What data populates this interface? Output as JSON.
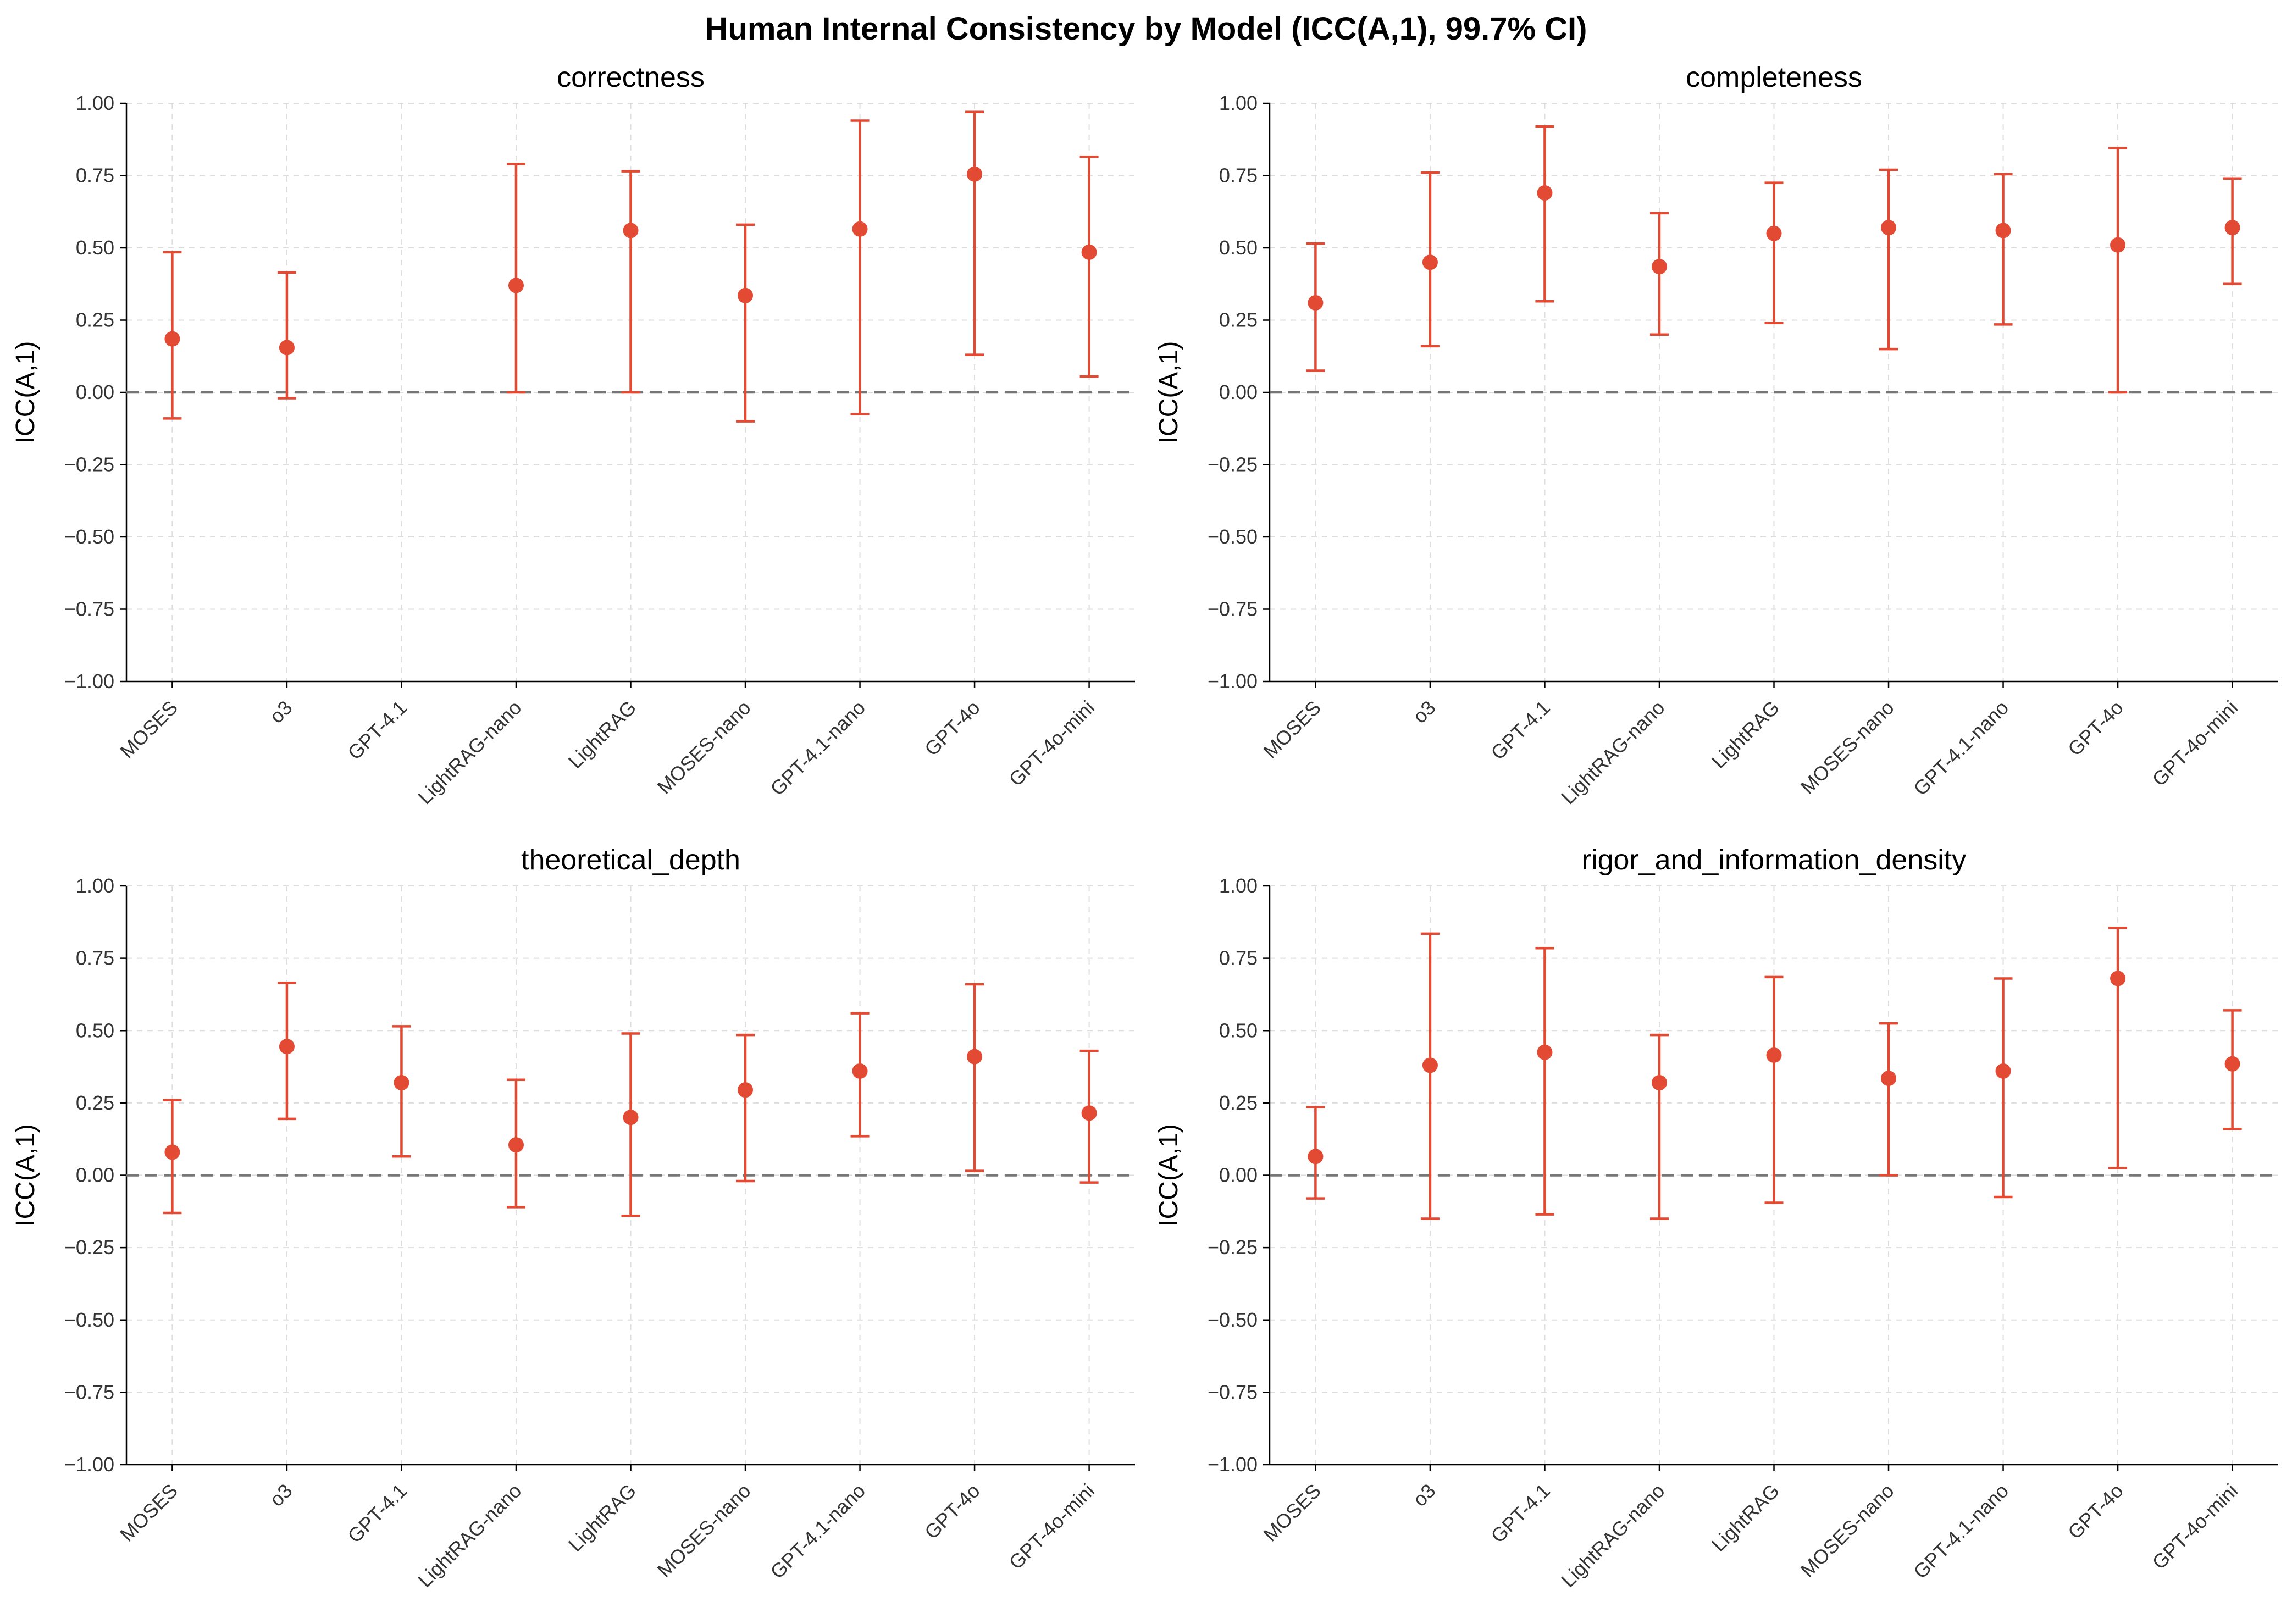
{
  "title": "Human Internal Consistency by Model (ICC(A,1), 99.7% CI)",
  "colors": {
    "marker": "#e34a33",
    "zero_line": "#777777",
    "grid": "#dddddd",
    "axis": "#000000"
  },
  "chart_data": [
    {
      "type": "scatter",
      "title": "correctness",
      "ylabel": "ICC(A,1)",
      "ylim": [
        -1,
        1
      ],
      "yticks": [
        "−1.00",
        "−0.75",
        "−0.50",
        "−0.25",
        "0.00",
        "0.25",
        "0.50",
        "0.75",
        "1.00"
      ],
      "categories": [
        "MOSES",
        "o3",
        "GPT-4.1",
        "LightRAG-nano",
        "LightRAG",
        "MOSES-nano",
        "GPT-4.1-nano",
        "GPT-4o",
        "GPT-4o-mini"
      ],
      "values": [
        0.185,
        0.155,
        null,
        0.37,
        0.56,
        0.335,
        0.565,
        0.755,
        0.485
      ],
      "ci_lower": [
        -0.09,
        -0.02,
        null,
        0.0,
        0.0,
        -0.1,
        -0.075,
        0.13,
        0.055
      ],
      "ci_upper": [
        0.485,
        0.415,
        null,
        0.79,
        0.765,
        0.58,
        0.94,
        0.97,
        0.815
      ],
      "reference_line": 0,
      "grid": true
    },
    {
      "type": "scatter",
      "title": "completeness",
      "ylabel": "ICC(A,1)",
      "ylim": [
        -1,
        1
      ],
      "yticks": [
        "−1.00",
        "−0.75",
        "−0.50",
        "−0.25",
        "0.00",
        "0.25",
        "0.50",
        "0.75",
        "1.00"
      ],
      "categories": [
        "MOSES",
        "o3",
        "GPT-4.1",
        "LightRAG-nano",
        "LightRAG",
        "MOSES-nano",
        "GPT-4.1-nano",
        "GPT-4o",
        "GPT-4o-mini"
      ],
      "values": [
        0.31,
        0.45,
        0.69,
        0.435,
        0.55,
        0.57,
        0.56,
        0.51,
        0.57
      ],
      "ci_lower": [
        0.075,
        0.16,
        0.315,
        0.2,
        0.24,
        0.15,
        0.235,
        0.0,
        0.375
      ],
      "ci_upper": [
        0.515,
        0.76,
        0.92,
        0.62,
        0.725,
        0.77,
        0.755,
        0.845,
        0.74
      ],
      "reference_line": 0,
      "grid": true
    },
    {
      "type": "scatter",
      "title": "theoretical_depth",
      "ylabel": "ICC(A,1)",
      "ylim": [
        -1,
        1
      ],
      "yticks": [
        "−1.00",
        "−0.75",
        "−0.50",
        "−0.25",
        "0.00",
        "0.25",
        "0.50",
        "0.75",
        "1.00"
      ],
      "categories": [
        "MOSES",
        "o3",
        "GPT-4.1",
        "LightRAG-nano",
        "LightRAG",
        "MOSES-nano",
        "GPT-4.1-nano",
        "GPT-4o",
        "GPT-4o-mini"
      ],
      "values": [
        0.08,
        0.445,
        0.32,
        0.105,
        0.2,
        0.295,
        0.36,
        0.41,
        0.215
      ],
      "ci_lower": [
        -0.13,
        0.195,
        0.065,
        -0.11,
        -0.14,
        -0.02,
        0.135,
        0.015,
        -0.025
      ],
      "ci_upper": [
        0.26,
        0.665,
        0.515,
        0.33,
        0.49,
        0.485,
        0.56,
        0.66,
        0.43
      ],
      "reference_line": 0,
      "grid": true
    },
    {
      "type": "scatter",
      "title": "rigor_and_information_density",
      "ylabel": "ICC(A,1)",
      "ylim": [
        -1,
        1
      ],
      "yticks": [
        "−1.00",
        "−0.75",
        "−0.50",
        "−0.25",
        "0.00",
        "0.25",
        "0.50",
        "0.75",
        "1.00"
      ],
      "categories": [
        "MOSES",
        "o3",
        "GPT-4.1",
        "LightRAG-nano",
        "LightRAG",
        "MOSES-nano",
        "GPT-4.1-nano",
        "GPT-4o",
        "GPT-4o-mini"
      ],
      "values": [
        0.065,
        0.38,
        0.425,
        0.32,
        0.415,
        0.335,
        0.36,
        0.68,
        0.385
      ],
      "ci_lower": [
        -0.08,
        -0.15,
        -0.135,
        -0.15,
        -0.095,
        0.0,
        -0.075,
        0.025,
        0.16
      ],
      "ci_upper": [
        0.235,
        0.835,
        0.785,
        0.485,
        0.685,
        0.525,
        0.68,
        0.855,
        0.57
      ],
      "reference_line": 0,
      "grid": true
    }
  ]
}
